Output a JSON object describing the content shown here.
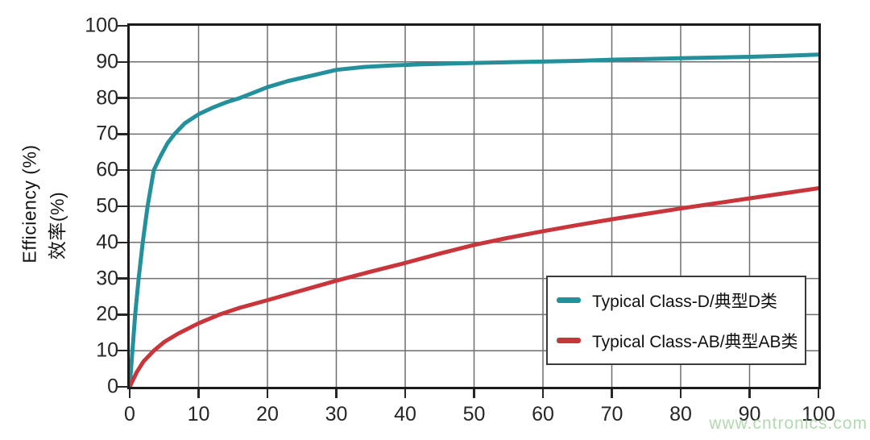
{
  "watermark": "www.cntronics.com",
  "axes": {
    "y_title_en": "Efficiency (%)",
    "y_title_zh": "效率(%)",
    "x_ticks": [
      0,
      10,
      20,
      30,
      40,
      50,
      60,
      70,
      80,
      90,
      100
    ],
    "y_ticks": [
      0,
      10,
      20,
      30,
      40,
      50,
      60,
      70,
      80,
      90,
      100
    ]
  },
  "legend": {
    "items": [
      {
        "label": "Typical Class-D/典型D类",
        "color": "#23909b"
      },
      {
        "label": "Typical Class-AB/典型AB类",
        "color": "#c8353b"
      }
    ]
  },
  "colors": {
    "class_d": "#23909b",
    "class_ab": "#c8353b",
    "grid": "#6e6e6e",
    "frame": "#1b1b1b",
    "tick_text": "#262626",
    "watermark": "#a6d3a2"
  },
  "chart_data": {
    "type": "line",
    "title": "",
    "xlabel": "",
    "ylabel": "Efficiency (%) / 效率(%)",
    "xlim": [
      0,
      100
    ],
    "ylim": [
      0,
      100
    ],
    "grid": true,
    "gridline_step": 10,
    "legend_position": "inside-lower-right",
    "series": [
      {
        "name": "Typical Class-D/典型D类",
        "color": "#23909b",
        "points": [
          [
            0,
            0
          ],
          [
            0.4,
            10
          ],
          [
            0.8,
            20
          ],
          [
            1.3,
            30
          ],
          [
            1.9,
            40
          ],
          [
            2.6,
            50
          ],
          [
            3.5,
            60
          ],
          [
            4.5,
            64
          ],
          [
            5.5,
            67.5
          ],
          [
            6.5,
            70
          ],
          [
            8,
            73
          ],
          [
            10,
            75.5
          ],
          [
            12,
            77.3
          ],
          [
            14,
            78.8
          ],
          [
            16,
            80
          ],
          [
            18,
            81.5
          ],
          [
            20,
            83
          ],
          [
            23,
            84.7
          ],
          [
            26,
            86
          ],
          [
            30,
            87.8
          ],
          [
            34,
            88.6
          ],
          [
            38,
            89
          ],
          [
            42,
            89.3
          ],
          [
            46,
            89.5
          ],
          [
            50,
            89.7
          ],
          [
            55,
            89.9
          ],
          [
            60,
            90.1
          ],
          [
            65,
            90.3
          ],
          [
            70,
            90.6
          ],
          [
            75,
            90.8
          ],
          [
            80,
            91
          ],
          [
            85,
            91.2
          ],
          [
            90,
            91.4
          ],
          [
            95,
            91.7
          ],
          [
            100,
            92
          ]
        ]
      },
      {
        "name": "Typical Class-AB/典型AB类",
        "color": "#c8353b",
        "points": [
          [
            0,
            0
          ],
          [
            0.5,
            2
          ],
          [
            1,
            4
          ],
          [
            2,
            7
          ],
          [
            3.5,
            10
          ],
          [
            5,
            12.4
          ],
          [
            7,
            14.7
          ],
          [
            10,
            17.6
          ],
          [
            13,
            20
          ],
          [
            16,
            21.9
          ],
          [
            20,
            24
          ],
          [
            25,
            26.7
          ],
          [
            30,
            29.4
          ],
          [
            35,
            31.9
          ],
          [
            40,
            34.3
          ],
          [
            45,
            36.9
          ],
          [
            50,
            39.3
          ],
          [
            55,
            41.3
          ],
          [
            60,
            43.1
          ],
          [
            65,
            44.8
          ],
          [
            70,
            46.4
          ],
          [
            75,
            47.9
          ],
          [
            80,
            49.4
          ],
          [
            85,
            50.8
          ],
          [
            90,
            52.2
          ],
          [
            95,
            53.6
          ],
          [
            100,
            55
          ]
        ]
      }
    ]
  }
}
